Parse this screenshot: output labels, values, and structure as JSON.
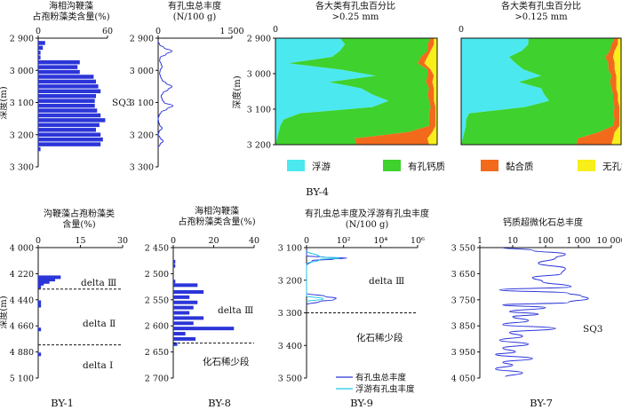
{
  "chart_data": [
    {
      "id": "p1",
      "type": "bar",
      "orientation": "horizontal",
      "title": "海相沟鞭藻\n占孢粉藻类含量(%)",
      "xlim": [
        0,
        60
      ],
      "xticks": [
        "0",
        "60"
      ],
      "ylim": [
        2900,
        3300
      ],
      "yticks": [
        "2 900",
        "3 000",
        "3 100",
        "3 200",
        "3 300"
      ],
      "ylabel": "深度(m)",
      "depths": [
        2915,
        2930,
        2945,
        2960,
        2975,
        2990,
        3005,
        3020,
        3035,
        3050,
        3065,
        3080,
        3095,
        3110,
        3125,
        3140,
        3155,
        3170,
        3185,
        3200,
        3215,
        3230,
        3245
      ],
      "values": [
        6,
        4,
        2,
        2,
        36,
        34,
        36,
        48,
        50,
        52,
        54,
        50,
        49,
        49,
        51,
        54,
        58,
        53,
        50,
        54,
        56,
        54,
        2
      ],
      "annotations": [
        "SQ3"
      ]
    },
    {
      "id": "p2",
      "type": "line",
      "orientation": "vertical",
      "title": "有孔虫总丰度\n(N/100 g)",
      "xlim": [
        0,
        1500
      ],
      "xticks": [
        "0",
        "1 500"
      ],
      "ylim": [
        2900,
        3300
      ],
      "yticks": [
        "2 900",
        "3 000",
        "3 100",
        "3 200",
        "3 300"
      ],
      "depths": [
        2910,
        2920,
        2930,
        2940,
        2950,
        2960,
        2970,
        2980,
        2990,
        3000,
        3010,
        3020,
        3030,
        3040,
        3050,
        3060,
        3070,
        3080,
        3090,
        3100,
        3110,
        3120,
        3130,
        3140,
        3150,
        3160,
        3170,
        3180,
        3190,
        3200,
        3210,
        3220,
        3230,
        3240
      ],
      "values": [
        0,
        30,
        120,
        280,
        160,
        40,
        30,
        60,
        80,
        40,
        30,
        50,
        80,
        160,
        280,
        200,
        100,
        60,
        80,
        120,
        300,
        180,
        60,
        20,
        0,
        10,
        30,
        80,
        20,
        0,
        40,
        100,
        40,
        0
      ]
    },
    {
      "id": "p3",
      "type": "area",
      "stacked": true,
      "normalized": true,
      "title": "各大类有孔虫百分比\n>0.25 mm",
      "xlim": [
        0,
        100
      ],
      "xticks": [
        "0"
      ],
      "ylim": [
        2900,
        3240
      ],
      "yticks": [
        "2 900",
        "3 000",
        "3 100",
        "3 200"
      ],
      "ylabel": "深度(m)",
      "depths": [
        2900,
        2920,
        2940,
        2960,
        2980,
        3000,
        3020,
        3040,
        3060,
        3080,
        3100,
        3120,
        3140,
        3160,
        3180,
        3200,
        3220,
        3240
      ],
      "series": [
        {
          "name": "浮游",
          "values": [
            40,
            43,
            40,
            35,
            8,
            40,
            62,
            33,
            53,
            60,
            70,
            60,
            15,
            5,
            3,
            2,
            1,
            0
          ]
        },
        {
          "name": "有孔钙质",
          "values": [
            56,
            51,
            54,
            55,
            80,
            54,
            32,
            60,
            42,
            34,
            25,
            36,
            80,
            90,
            92,
            80,
            48,
            50
          ]
        },
        {
          "name": "黏合质",
          "values": [
            2,
            4,
            2,
            4,
            4,
            2,
            4,
            4,
            3,
            4,
            3,
            3,
            4,
            4,
            4,
            15,
            45,
            45
          ]
        },
        {
          "name": "无孔钙质",
          "values": [
            2,
            2,
            4,
            6,
            8,
            4,
            2,
            3,
            2,
            2,
            2,
            1,
            1,
            1,
            1,
            3,
            6,
            5
          ]
        }
      ],
      "panel_label": "BY-4"
    },
    {
      "id": "p4",
      "type": "area",
      "stacked": true,
      "normalized": true,
      "title": "各大类有孔虫百分比\n>0.125 mm",
      "xlim": [
        0,
        100
      ],
      "xticks": [
        "0"
      ],
      "ylim": [
        2900,
        3240
      ],
      "yticks": [
        "2 900",
        "3 000",
        "3 100",
        "3 200"
      ],
      "depths": [
        2900,
        2920,
        2940,
        2960,
        2980,
        3000,
        3020,
        3040,
        3060,
        3080,
        3100,
        3120,
        3140,
        3160,
        3180,
        3200,
        3220,
        3240
      ],
      "series": [
        {
          "name": "浮游",
          "values": [
            42,
            42,
            38,
            30,
            34,
            39,
            50,
            36,
            50,
            52,
            55,
            40,
            5,
            3,
            3,
            2,
            1,
            0
          ]
        },
        {
          "name": "有孔钙质",
          "values": [
            54,
            52,
            55,
            60,
            58,
            53,
            44,
            57,
            44,
            43,
            40,
            56,
            90,
            93,
            92,
            84,
            72,
            72
          ]
        },
        {
          "name": "黏合质",
          "values": [
            2,
            4,
            3,
            5,
            4,
            4,
            3,
            4,
            3,
            3,
            3,
            3,
            4,
            3,
            4,
            10,
            22,
            22
          ]
        },
        {
          "name": "无孔钙质",
          "values": [
            2,
            2,
            4,
            5,
            4,
            4,
            3,
            3,
            3,
            2,
            2,
            1,
            1,
            1,
            1,
            4,
            5,
            6
          ]
        }
      ]
    },
    {
      "id": "p5",
      "type": "bar",
      "orientation": "horizontal",
      "title": "沟鞭藻占孢粉藻类\n含量(%)",
      "xlim": [
        0,
        30
      ],
      "xticks": [
        "0",
        "15",
        "30"
      ],
      "ylim": [
        4000,
        5100
      ],
      "yticks": [
        "4 000",
        "4 220",
        "4 440",
        "4 660",
        "4 880",
        "5 100"
      ],
      "ylabel": "深度(m)",
      "depths": [
        4250,
        4270,
        4290,
        4305,
        4330,
        4460,
        4490,
        4690,
        4900
      ],
      "values": [
        8,
        6,
        4,
        2,
        1,
        1,
        1,
        1,
        1
      ],
      "boundaries": [
        4350,
        4820
      ],
      "annotations": [
        "delta Ⅲ",
        "delta Ⅱ",
        "delta Ⅰ"
      ],
      "panel_label": "BY-1"
    },
    {
      "id": "p6",
      "type": "bar",
      "orientation": "horizontal",
      "title": "海相沟鞭藻\n占孢粉藻类含量(%)",
      "xlim": [
        0,
        40
      ],
      "xticks": [
        "0",
        "20",
        "40"
      ],
      "ylim": [
        2450,
        2700
      ],
      "yticks": [
        "2 450",
        "2 500",
        "2 550",
        "2 600",
        "2 650",
        "2 700"
      ],
      "depths": [
        2477,
        2485,
        2515,
        2522,
        2535,
        2545,
        2555,
        2565,
        2575,
        2585,
        2595,
        2605,
        2615,
        2625,
        2635
      ],
      "values": [
        1,
        1,
        1,
        12,
        15,
        8,
        12,
        10,
        8,
        15,
        10,
        30,
        6,
        11,
        2
      ],
      "boundaries": [
        2633
      ],
      "annotations": [
        "delta Ⅲ",
        "化石稀少段"
      ],
      "panel_label": "BY-8"
    },
    {
      "id": "p7",
      "type": "line",
      "orientation": "vertical",
      "xscale": "log",
      "title": "有孔虫总丰度及浮游有孔虫丰度\n(N/100 g)",
      "xlim": [
        1,
        1000000
      ],
      "xticks": [
        "0",
        "10²",
        "10⁴",
        "10⁶"
      ],
      "ylim": [
        3100,
        3500
      ],
      "yticks": [
        "3 100",
        "3 200",
        "3 300",
        "3 400",
        "3 500"
      ],
      "series": [
        {
          "name": "有孔虫总丰度",
          "color": "#2b35d8",
          "depths": [
            3110,
            3125,
            3130,
            3132,
            3135,
            3140,
            3155,
            3240,
            3250,
            3255,
            3260,
            3265,
            3275
          ],
          "values": [
            1,
            1,
            10,
            150,
            30,
            2,
            1,
            1,
            10,
            40,
            30,
            5,
            1
          ]
        },
        {
          "name": "浮游有孔虫丰度",
          "color": "#22c7e6",
          "depths": [
            3110,
            3128,
            3132,
            3137,
            3150,
            3248,
            3257,
            3266
          ],
          "values": [
            1,
            5,
            60,
            5,
            1,
            1,
            8,
            1
          ]
        }
      ],
      "boundaries": [
        3300
      ],
      "annotations": [
        "delta Ⅲ",
        "化石稀少段"
      ],
      "legend": "bottom-right",
      "panel_label": "BY-9"
    },
    {
      "id": "p8",
      "type": "line",
      "orientation": "vertical",
      "xscale": "log",
      "title": "钙质超微化石总丰度",
      "xlim": [
        1,
        10000
      ],
      "xticks": [
        "1",
        "10",
        "100",
        "1 000",
        "10 000"
      ],
      "ylim": [
        3550,
        4050
      ],
      "yticks": [
        "3 550",
        "3 650",
        "3 750",
        "3 850",
        "3 950",
        "4 050"
      ],
      "depths": [
        3550,
        3560,
        3575,
        3590,
        3610,
        3630,
        3650,
        3665,
        3680,
        3700,
        3712,
        3725,
        3735,
        3745,
        3760,
        3770,
        3780,
        3795,
        3805,
        3815,
        3830,
        3845,
        3860,
        3875,
        3890,
        3905,
        3920,
        3935,
        3950,
        3960,
        3975,
        3990,
        4000,
        4015,
        4030,
        4045
      ],
      "values": [
        5,
        40,
        400,
        200,
        60,
        400,
        300,
        40,
        80,
        600,
        4,
        500,
        1200,
        2000,
        500,
        5,
        100,
        8,
        60,
        10,
        30,
        5,
        200,
        8,
        20,
        4,
        30,
        5,
        12,
        3,
        40,
        5,
        10,
        3,
        20,
        6
      ],
      "annotations": [
        "SQ3"
      ],
      "panel_label": "BY-7"
    }
  ],
  "legend_top": [
    {
      "name": "浮游",
      "color": "#4be8f0"
    },
    {
      "name": "有孔钙质",
      "color": "#3fd12d"
    },
    {
      "name": "黏合质",
      "color": "#f26a1b"
    },
    {
      "name": "无孔钙质",
      "color": "#f7ee1a"
    }
  ],
  "colors": {
    "bar": "#2b35d8",
    "line": "#2b35d8",
    "label": "#d42020"
  }
}
